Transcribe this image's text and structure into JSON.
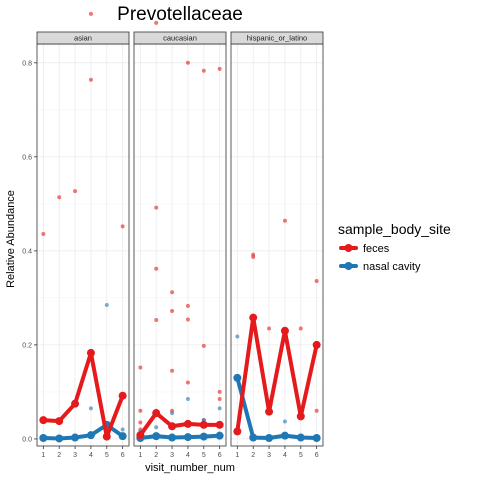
{
  "chart_data": {
    "type": "line",
    "title": "Prevotellaceae",
    "xlabel": "visit_number_num",
    "ylabel": "Relative Abundance",
    "x_ticks": [
      1,
      2,
      3,
      4,
      5,
      6
    ],
    "y_ticks": [
      0.0,
      0.2,
      0.4,
      0.6,
      0.8
    ],
    "y_tick_labels": [
      "0.0",
      "0.2",
      "0.4",
      "0.6",
      "0.8"
    ],
    "xlim": [
      0.6,
      6.4
    ],
    "ylim": [
      -0.015,
      0.84
    ],
    "legend": {
      "title": "sample_body_site",
      "placement": "right",
      "entries": [
        {
          "label": "feces",
          "color": "#e41a1c"
        },
        {
          "label": "nasal cavity",
          "color": "#1f78b4"
        }
      ]
    },
    "facets": [
      {
        "label": "asian",
        "series": [
          {
            "legend_index": 0,
            "x": [
              1,
              2,
              3,
              4,
              5,
              6
            ],
            "y": [
              0.04,
              0.038,
              0.075,
              0.183,
              0.005,
              0.092
            ],
            "points": [
              [
                1,
                0.436
              ],
              [
                1,
                0.04
              ],
              [
                2,
                0.514
              ],
              [
                2,
                0.038
              ],
              [
                3,
                0.527
              ],
              [
                3,
                0.075
              ],
              [
                4,
                0.764
              ],
              [
                4,
                0.904
              ],
              [
                4,
                0.183
              ],
              [
                5,
                0.005
              ],
              [
                5,
                0.03
              ],
              [
                6,
                0.452
              ],
              [
                6,
                0.092
              ]
            ]
          },
          {
            "legend_index": 1,
            "x": [
              1,
              2,
              3,
              4,
              5,
              6
            ],
            "y": [
              0.002,
              0.001,
              0.003,
              0.008,
              0.03,
              0.006
            ],
            "points": [
              [
                1,
                0.002
              ],
              [
                2,
                0.001
              ],
              [
                3,
                0.003
              ],
              [
                4,
                0.065
              ],
              [
                4,
                0.008
              ],
              [
                5,
                0.285
              ],
              [
                5,
                0.03
              ],
              [
                6,
                0.02
              ],
              [
                6,
                0.006
              ]
            ]
          }
        ]
      },
      {
        "label": "caucasian",
        "series": [
          {
            "legend_index": 0,
            "x": [
              1,
              2,
              3,
              4,
              5,
              6
            ],
            "y": [
              0.008,
              0.055,
              0.027,
              0.032,
              0.03,
              0.03
            ],
            "points": [
              [
                1,
                0.152
              ],
              [
                1,
                0.06
              ],
              [
                1,
                0.035
              ],
              [
                1,
                0.02
              ],
              [
                1,
                0.008
              ],
              [
                2,
                0.885
              ],
              [
                2,
                0.492
              ],
              [
                2,
                0.362
              ],
              [
                2,
                0.253
              ],
              [
                2,
                0.06
              ],
              [
                2,
                0.055
              ],
              [
                3,
                0.312
              ],
              [
                3,
                0.272
              ],
              [
                3,
                0.145
              ],
              [
                3,
                0.06
              ],
              [
                3,
                0.027
              ],
              [
                4,
                0.8
              ],
              [
                4,
                0.283
              ],
              [
                4,
                0.254
              ],
              [
                4,
                0.12
              ],
              [
                4,
                0.032
              ],
              [
                5,
                0.783
              ],
              [
                5,
                0.198
              ],
              [
                5,
                0.04
              ],
              [
                5,
                0.03
              ],
              [
                6,
                0.787
              ],
              [
                6,
                0.1
              ],
              [
                6,
                0.085
              ],
              [
                6,
                0.03
              ]
            ]
          },
          {
            "legend_index": 1,
            "x": [
              1,
              2,
              3,
              4,
              5,
              6
            ],
            "y": [
              0.002,
              0.006,
              0.003,
              0.004,
              0.005,
              0.007
            ],
            "points": [
              [
                1,
                0.015
              ],
              [
                1,
                0.002
              ],
              [
                2,
                0.025
              ],
              [
                2,
                0.006
              ],
              [
                3,
                0.055
              ],
              [
                3,
                0.003
              ],
              [
                4,
                0.085
              ],
              [
                4,
                0.004
              ],
              [
                5,
                0.04
              ],
              [
                5,
                0.005
              ],
              [
                6,
                0.065
              ],
              [
                6,
                0.007
              ]
            ]
          }
        ]
      },
      {
        "label": "hispanic_or_latino",
        "series": [
          {
            "legend_index": 0,
            "x": [
              1,
              2,
              3,
              4,
              5,
              6
            ],
            "y": [
              0.016,
              0.258,
              0.058,
              0.23,
              0.048,
              0.2
            ],
            "points": [
              [
                1,
                0.016
              ],
              [
                2,
                0.392
              ],
              [
                2,
                0.387
              ],
              [
                2,
                0.258
              ],
              [
                3,
                0.235
              ],
              [
                3,
                0.058
              ],
              [
                4,
                0.464
              ],
              [
                4,
                0.23
              ],
              [
                5,
                0.235
              ],
              [
                5,
                0.048
              ],
              [
                6,
                0.336
              ],
              [
                6,
                0.06
              ],
              [
                6,
                0.2
              ]
            ]
          },
          {
            "legend_index": 1,
            "x": [
              1,
              2,
              3,
              4,
              5,
              6
            ],
            "y": [
              0.13,
              0.003,
              0.002,
              0.007,
              0.003,
              0.002
            ],
            "points": [
              [
                1,
                0.218
              ],
              [
                1,
                0.13
              ],
              [
                2,
                0.003
              ],
              [
                3,
                0.002
              ],
              [
                4,
                0.037
              ],
              [
                4,
                0.007
              ],
              [
                5,
                0.003
              ],
              [
                6,
                0.002
              ]
            ]
          }
        ]
      }
    ]
  }
}
